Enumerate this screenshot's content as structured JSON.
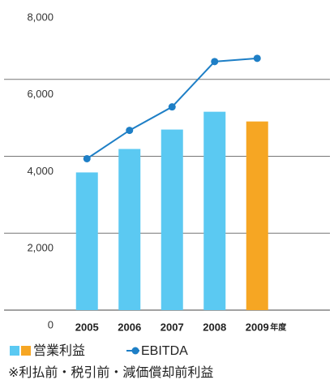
{
  "chart_data": {
    "type": "bar_line",
    "categories": [
      "2005",
      "2006",
      "2007",
      "2008",
      "2009"
    ],
    "x_unit": "年度",
    "series": [
      {
        "name": "営業利益",
        "type": "bar",
        "colors": [
          "#5bc9f2",
          "#5bc9f2",
          "#5bc9f2",
          "#5bc9f2",
          "#f6a623"
        ],
        "values": [
          3580,
          4190,
          4695,
          5158,
          4905
        ]
      },
      {
        "name": "EBITDA",
        "type": "line",
        "color": "#1e7fc6",
        "values": [
          3937,
          4674,
          5284,
          6463,
          6547
        ]
      }
    ],
    "ylim": [
      0,
      8000
    ],
    "yticks": [
      0,
      {
        "value": 2000,
        "label": "2,000"
      },
      {
        "value": 4000,
        "label": "4,000"
      },
      {
        "value": 6000,
        "label": "6,000"
      },
      {
        "value": 8000,
        "label": "8,000"
      }
    ],
    "grid": true,
    "note": "※利払前・税引前・減価償却前利益"
  }
}
